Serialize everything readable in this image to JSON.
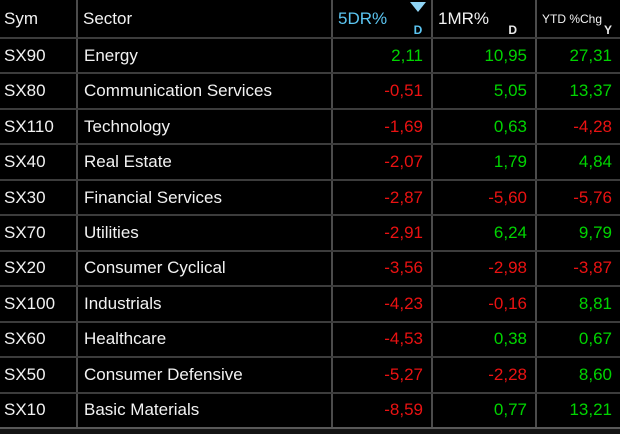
{
  "table": {
    "columns": [
      {
        "label": "Sym",
        "timeframe": ""
      },
      {
        "label": "Sector",
        "timeframe": ""
      },
      {
        "label": "5DR%",
        "timeframe": "D",
        "sorted": true,
        "sort_direction": "descending"
      },
      {
        "label": "1MR%",
        "timeframe": "D"
      },
      {
        "label": "YTD %Chg",
        "timeframe": "Y"
      }
    ],
    "rows": [
      {
        "sym": "SX90",
        "sector": "Energy",
        "fiveDr": "2,11",
        "oneMr": "10,95",
        "ytd": "27,31"
      },
      {
        "sym": "SX80",
        "sector": "Communication Services",
        "fiveDr": "-0,51",
        "oneMr": "5,05",
        "ytd": "13,37"
      },
      {
        "sym": "SX110",
        "sector": "Technology",
        "fiveDr": "-1,69",
        "oneMr": "0,63",
        "ytd": "-4,28"
      },
      {
        "sym": "SX40",
        "sector": "Real Estate",
        "fiveDr": "-2,07",
        "oneMr": "1,79",
        "ytd": "4,84"
      },
      {
        "sym": "SX30",
        "sector": "Financial Services",
        "fiveDr": "-2,87",
        "oneMr": "-5,60",
        "ytd": "-5,76"
      },
      {
        "sym": "SX70",
        "sector": "Utilities",
        "fiveDr": "-2,91",
        "oneMr": "6,24",
        "ytd": "9,79"
      },
      {
        "sym": "SX20",
        "sector": "Consumer Cyclical",
        "fiveDr": "-3,56",
        "oneMr": "-2,98",
        "ytd": "-3,87"
      },
      {
        "sym": "SX100",
        "sector": "Industrials",
        "fiveDr": "-4,23",
        "oneMr": "-0,16",
        "ytd": "8,81"
      },
      {
        "sym": "SX60",
        "sector": "Healthcare",
        "fiveDr": "-4,53",
        "oneMr": "0,38",
        "ytd": "0,67"
      },
      {
        "sym": "SX50",
        "sector": "Consumer Defensive",
        "fiveDr": "-5,27",
        "oneMr": "-2,28",
        "ytd": "8,60"
      },
      {
        "sym": "SX10",
        "sector": "Basic Materials",
        "fiveDr": "-8,59",
        "oneMr": "0,77",
        "ytd": "13,21"
      }
    ]
  },
  "colors": {
    "positive": "#00d400",
    "negative": "#ea1212",
    "sorted_column": "#5cc6f2",
    "sort_triangle": "#8fd4f4",
    "text": "#f2f2f2",
    "background": "#000000",
    "grid_line": "#4b4b4b"
  },
  "icons": {
    "sort_descending": "triangle-down"
  }
}
